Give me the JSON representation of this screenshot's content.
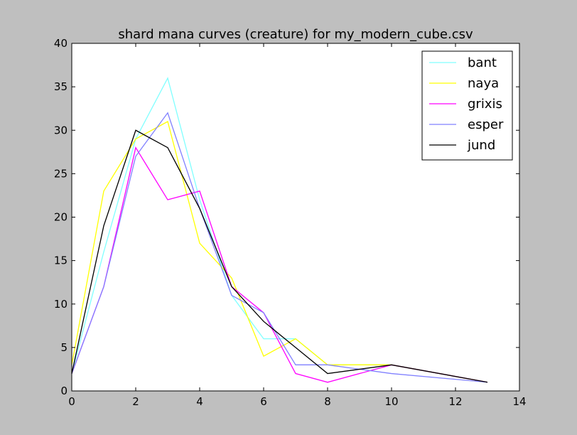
{
  "chart_data": {
    "type": "line",
    "title": "shard mana curves (creature) for my_modern_cube.csv",
    "xlabel": "",
    "ylabel": "",
    "xlim": [
      0,
      14
    ],
    "ylim": [
      0,
      40
    ],
    "xticks": [
      0,
      2,
      4,
      6,
      8,
      10,
      12,
      14
    ],
    "yticks": [
      0,
      5,
      10,
      15,
      20,
      25,
      30,
      35,
      40
    ],
    "grid": false,
    "legend_position": "top-right",
    "x": [
      0,
      1,
      2,
      3,
      4,
      5,
      6,
      7,
      8,
      10,
      13
    ],
    "series": [
      {
        "name": "bant",
        "color": "#80ffff",
        "values": [
          2,
          16,
          29,
          36,
          22,
          11,
          6,
          6,
          3,
          3,
          1
        ]
      },
      {
        "name": "naya",
        "color": "#ffff00",
        "values": [
          3,
          23,
          29,
          31,
          17,
          13,
          4,
          6,
          3,
          3,
          1
        ]
      },
      {
        "name": "grixis",
        "color": "#ff00ff",
        "values": [
          2,
          12,
          28,
          22,
          23,
          12,
          9,
          2,
          1,
          3,
          1
        ]
      },
      {
        "name": "esper",
        "color": "#8080ff",
        "values": [
          2,
          12,
          27,
          32,
          21,
          11,
          9,
          3,
          3,
          2,
          1
        ]
      },
      {
        "name": "jund",
        "color": "#000000",
        "values": [
          2,
          19,
          30,
          28,
          21,
          12,
          8,
          5,
          2,
          3,
          1
        ]
      }
    ]
  }
}
